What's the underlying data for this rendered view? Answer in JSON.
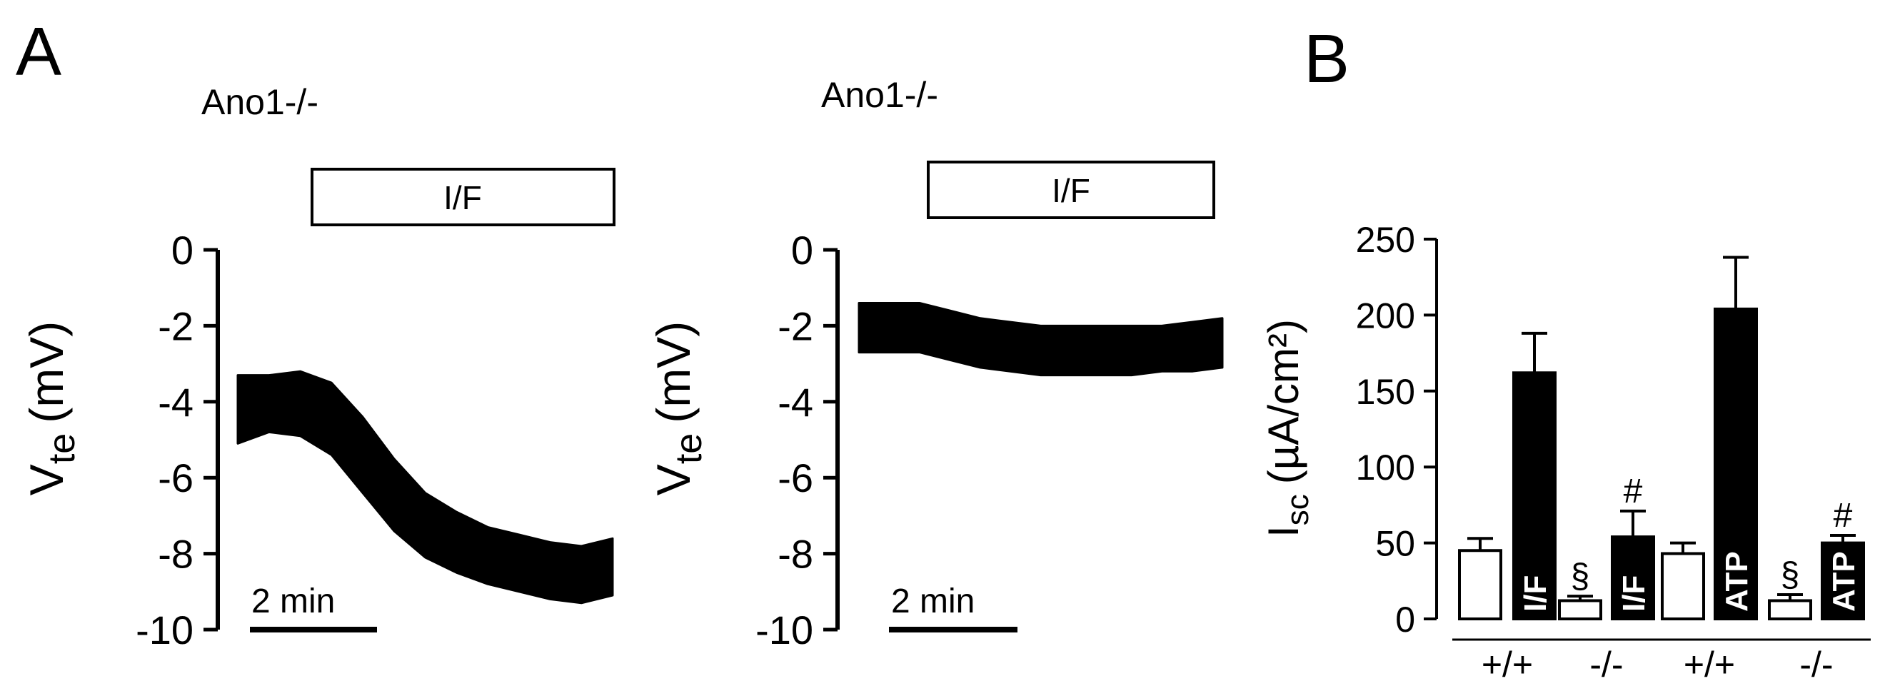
{
  "panels": {
    "a": {
      "label": "A"
    },
    "b": {
      "label": "B"
    }
  },
  "chart_data": [
    {
      "type": "line",
      "title": "Ano1-/-",
      "treatment_bar": "I/F",
      "ylabel_main": "V",
      "ylabel_sub": "te",
      "ylabel_unit": "(mV)",
      "ylim": [
        -10,
        0
      ],
      "yticks": [
        "0",
        "-2",
        "-4",
        "-6",
        "-8",
        "-10"
      ],
      "ytick_values": [
        0,
        -2,
        -4,
        -6,
        -8,
        -10
      ],
      "scale_bar": "2 min",
      "trace_time_min": [
        0,
        0.5,
        1,
        1.5,
        2,
        2.5,
        3,
        3.5,
        4,
        4.5,
        5,
        5.5,
        6
      ],
      "trace_upper_mV": [
        -3.3,
        -3.3,
        -3.2,
        -3.5,
        -4.4,
        -5.5,
        -6.4,
        -6.9,
        -7.3,
        -7.5,
        -7.7,
        -7.8,
        -7.6
      ],
      "trace_lower_mV": [
        -5.1,
        -4.8,
        -4.9,
        -5.4,
        -6.4,
        -7.4,
        -8.1,
        -8.5,
        -8.8,
        -9.0,
        -9.2,
        -9.3,
        -9.1
      ]
    },
    {
      "type": "line",
      "title": "Ano1-/-",
      "treatment_bar": "I/F",
      "ylabel_main": "V",
      "ylabel_sub": "te",
      "ylabel_unit": "(mV)",
      "ylim": [
        -10,
        0
      ],
      "yticks": [
        "0",
        "-2",
        "-4",
        "-6",
        "-8",
        "-10"
      ],
      "ytick_values": [
        0,
        -2,
        -4,
        -6,
        -8,
        -10
      ],
      "scale_bar": "2 min",
      "trace_time_min": [
        0,
        0.5,
        1,
        1.5,
        2,
        2.5,
        3,
        3.5,
        4,
        4.5,
        5,
        5.5,
        6
      ],
      "trace_upper_mV": [
        -1.4,
        -1.4,
        -1.4,
        -1.6,
        -1.8,
        -1.9,
        -2.0,
        -2.0,
        -2.0,
        -2.0,
        -2.0,
        -1.9,
        -1.8
      ],
      "trace_lower_mV": [
        -2.7,
        -2.7,
        -2.7,
        -2.9,
        -3.1,
        -3.2,
        -3.3,
        -3.3,
        -3.3,
        -3.3,
        -3.2,
        -3.2,
        -3.1
      ]
    },
    {
      "type": "bar",
      "ylabel_main": "I",
      "ylabel_sub": "sc",
      "ylabel_unit": "(µA/cm²)",
      "ylim": [
        0,
        250
      ],
      "yticks": [
        "0",
        "50",
        "100",
        "150",
        "200",
        "250"
      ],
      "ytick_values": [
        0,
        50,
        100,
        150,
        200,
        250
      ],
      "bars": [
        {
          "value": 45,
          "error": 8,
          "fill": "white",
          "label": "",
          "marker": ""
        },
        {
          "value": 162,
          "error": 26,
          "fill": "black",
          "label": "I/F",
          "marker": ""
        },
        {
          "value": 12,
          "error": 3,
          "fill": "white",
          "label": "",
          "marker": "§"
        },
        {
          "value": 54,
          "error": 17,
          "fill": "black",
          "label": "I/F",
          "marker": "#"
        },
        {
          "value": 43,
          "error": 7,
          "fill": "white",
          "label": "",
          "marker": ""
        },
        {
          "value": 204,
          "error": 34,
          "fill": "black",
          "label": "ATP",
          "marker": ""
        },
        {
          "value": 12,
          "error": 4,
          "fill": "white",
          "label": "",
          "marker": "§"
        },
        {
          "value": 50,
          "error": 5,
          "fill": "black",
          "label": "ATP",
          "marker": "#"
        }
      ],
      "groups": [
        "+/+",
        "-/-",
        "+/+",
        "-/-"
      ]
    }
  ],
  "colors": {
    "ink": "#000000",
    "paper": "#ffffff"
  }
}
